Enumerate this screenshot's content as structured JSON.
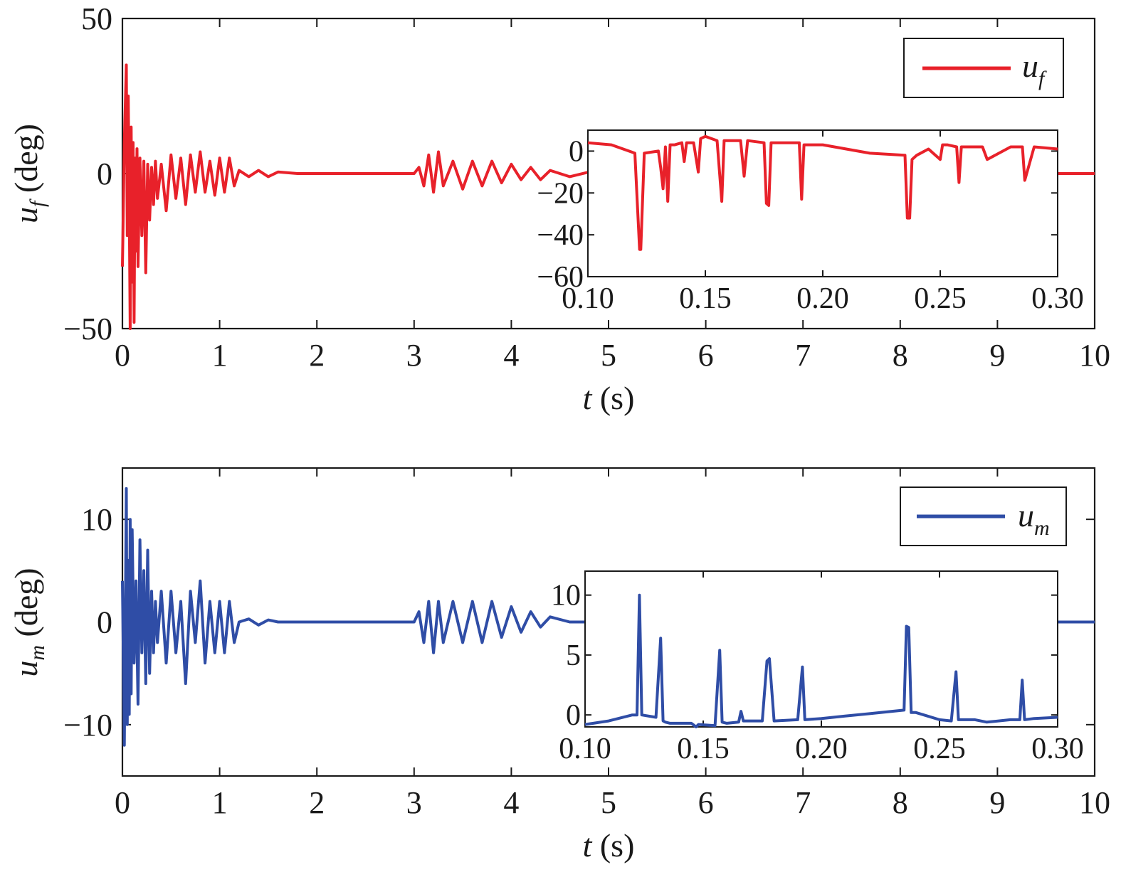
{
  "chart_data": [
    {
      "type": "line",
      "color": "#e8212a",
      "xlim": [
        0,
        10
      ],
      "ylim": [
        -50,
        50
      ],
      "xticks": [
        "0",
        "1",
        "2",
        "3",
        "4",
        "5",
        "6",
        "7",
        "8",
        "9",
        "10"
      ],
      "yticks": [
        "50",
        "0",
        "−50"
      ],
      "xlabel_var": "t",
      "xlabel_unit": " (s)",
      "ylabel_var": "u",
      "ylabel_sub": "f",
      "ylabel_unit": " (deg)",
      "legend_var": "u",
      "legend_sub": "f",
      "legend_position": "top-right",
      "series": [
        {
          "x": [
            0.0,
            0.02,
            0.04,
            0.05,
            0.06,
            0.07,
            0.08,
            0.09,
            0.1,
            0.11,
            0.12,
            0.13,
            0.14,
            0.15,
            0.16,
            0.18,
            0.2,
            0.22,
            0.24,
            0.26,
            0.28,
            0.3,
            0.32,
            0.34,
            0.36,
            0.4,
            0.45,
            0.5,
            0.55,
            0.6,
            0.65,
            0.7,
            0.75,
            0.8,
            0.85,
            0.9,
            0.95,
            1.0,
            1.05,
            1.1,
            1.15,
            1.2,
            1.3,
            1.4,
            1.5,
            1.6,
            1.8,
            2.0,
            2.5,
            3.0,
            3.05,
            3.1,
            3.15,
            3.2,
            3.25,
            3.3,
            3.4,
            3.5,
            3.6,
            3.7,
            3.8,
            3.9,
            4.0,
            4.1,
            4.2,
            4.3,
            4.4,
            4.6,
            4.8,
            5.0,
            9.6,
            10.0
          ],
          "y": [
            -30,
            10,
            35,
            -20,
            25,
            -10,
            -50,
            15,
            -35,
            10,
            -48,
            5,
            -25,
            8,
            -30,
            5,
            -20,
            4,
            -32,
            3,
            -15,
            2,
            -10,
            4,
            -8,
            3,
            -12,
            6,
            -8,
            5,
            -10,
            6,
            -6,
            7,
            -6,
            4,
            -7,
            5,
            -6,
            5,
            -4,
            1,
            -1,
            1,
            -1,
            0.5,
            0,
            0,
            0,
            0,
            2,
            -4,
            6,
            -6,
            7,
            -4,
            4,
            -5,
            4,
            -4,
            4,
            -3,
            3,
            -2,
            2,
            -2,
            1,
            -1,
            0.5,
            0,
            0,
            0
          ]
        }
      ],
      "inset": {
        "xlim": [
          0.1,
          0.3
        ],
        "ylim": [
          -60,
          10
        ],
        "xticks": [
          "0.10",
          "0.15",
          "0.20",
          "0.25",
          "0.30"
        ],
        "yticks": [
          "0",
          "−20",
          "−40",
          "−60"
        ],
        "x": [
          0.1,
          0.11,
          0.12,
          0.122,
          0.1225,
          0.124,
          0.13,
          0.131,
          0.132,
          0.133,
          0.134,
          0.135,
          0.137,
          0.14,
          0.141,
          0.142,
          0.145,
          0.147,
          0.148,
          0.15,
          0.155,
          0.157,
          0.158,
          0.16,
          0.165,
          0.1665,
          0.168,
          0.175,
          0.176,
          0.177,
          0.178,
          0.19,
          0.191,
          0.192,
          0.2,
          0.21,
          0.22,
          0.235,
          0.236,
          0.237,
          0.238,
          0.24,
          0.245,
          0.25,
          0.251,
          0.253,
          0.257,
          0.258,
          0.259,
          0.265,
          0.268,
          0.27,
          0.28,
          0.284,
          0.285,
          0.286,
          0.29,
          0.3
        ],
        "y": [
          4,
          3,
          -1,
          -47,
          -47,
          -1,
          0,
          -8,
          -18,
          2,
          -24,
          3,
          3,
          4,
          -5,
          4,
          4,
          -10,
          6,
          7,
          5,
          -24,
          5,
          5,
          5,
          -12,
          5,
          4,
          -25,
          -26,
          4,
          4,
          -23,
          3,
          3,
          1,
          -1,
          -2,
          -32,
          -32,
          -4,
          -2,
          1,
          -4,
          3,
          3,
          2,
          -15,
          2,
          2,
          2,
          -4,
          2,
          2,
          2,
          -14,
          2,
          1
        ]
      }
    },
    {
      "type": "line",
      "color": "#2f4da6",
      "xlim": [
        0,
        10
      ],
      "ylim": [
        -15,
        15
      ],
      "xticks": [
        "0",
        "1",
        "2",
        "3",
        "4",
        "5",
        "6",
        "7",
        "8",
        "9",
        "10"
      ],
      "yticks": [
        "10",
        "0",
        "−10"
      ],
      "xlabel_var": "t",
      "xlabel_unit": " (s)",
      "ylabel_var": "u",
      "ylabel_sub": "m",
      "ylabel_unit": " (deg)",
      "legend_var": "u",
      "legend_sub": "m",
      "legend_position": "top-right",
      "series": [
        {
          "x": [
            0.0,
            0.02,
            0.04,
            0.05,
            0.06,
            0.07,
            0.08,
            0.09,
            0.1,
            0.12,
            0.14,
            0.16,
            0.18,
            0.2,
            0.22,
            0.24,
            0.26,
            0.28,
            0.3,
            0.32,
            0.34,
            0.36,
            0.4,
            0.45,
            0.5,
            0.55,
            0.6,
            0.65,
            0.7,
            0.75,
            0.8,
            0.85,
            0.9,
            0.95,
            1.0,
            1.05,
            1.1,
            1.15,
            1.2,
            1.3,
            1.4,
            1.5,
            1.6,
            1.8,
            2.0,
            2.5,
            3.0,
            3.05,
            3.1,
            3.15,
            3.2,
            3.25,
            3.3,
            3.4,
            3.5,
            3.6,
            3.7,
            3.8,
            3.9,
            4.0,
            4.1,
            4.2,
            4.3,
            4.4,
            4.6,
            4.8,
            5.0,
            9.6,
            10.0
          ],
          "y": [
            4,
            -12,
            13,
            -10,
            6,
            -9,
            10,
            -7,
            9,
            -4,
            4,
            -8,
            8,
            -3,
            5,
            -6,
            7,
            -5,
            3,
            -3,
            2,
            -2,
            3,
            -4,
            3,
            -3,
            2,
            -6,
            3,
            -2,
            4,
            -4,
            2,
            -3,
            2,
            -3,
            2,
            -2,
            0,
            0.3,
            -0.3,
            0.2,
            0,
            0,
            0,
            0,
            0,
            1,
            -2,
            2,
            -3,
            2,
            -2,
            2,
            -2,
            2,
            -2,
            2,
            -1.5,
            1.5,
            -1,
            1,
            -0.5,
            0.5,
            0,
            0,
            0,
            0,
            0
          ]
        }
      ],
      "inset": {
        "xlim": [
          0.1,
          0.3
        ],
        "ylim": [
          -1,
          12
        ],
        "xticks": [
          "0.10",
          "0.15",
          "0.20",
          "0.25",
          "0.30"
        ],
        "yticks": [
          "10",
          "5",
          "0"
        ],
        "x": [
          0.1,
          0.11,
          0.12,
          0.122,
          0.123,
          0.124,
          0.13,
          0.132,
          0.133,
          0.134,
          0.136,
          0.145,
          0.147,
          0.148,
          0.155,
          0.157,
          0.158,
          0.16,
          0.165,
          0.166,
          0.167,
          0.175,
          0.177,
          0.178,
          0.18,
          0.19,
          0.192,
          0.193,
          0.2,
          0.21,
          0.22,
          0.235,
          0.236,
          0.237,
          0.238,
          0.24,
          0.245,
          0.25,
          0.255,
          0.257,
          0.258,
          0.259,
          0.265,
          0.27,
          0.28,
          0.284,
          0.285,
          0.286,
          0.29,
          0.3
        ],
        "y": [
          -0.8,
          -0.5,
          0,
          0,
          10,
          0,
          -0.2,
          6.4,
          -0.5,
          -0.6,
          -0.7,
          -0.7,
          -1,
          -0.8,
          -0.9,
          5.4,
          -0.6,
          -0.7,
          -0.6,
          0.3,
          -0.5,
          -0.5,
          4.5,
          4.7,
          -0.5,
          -0.4,
          4,
          -0.4,
          -0.3,
          -0.1,
          0.1,
          0.4,
          7.4,
          7.3,
          0.2,
          0.2,
          -0.1,
          -0.4,
          -0.5,
          3.6,
          -0.4,
          -0.4,
          -0.4,
          -0.6,
          -0.4,
          -0.4,
          2.9,
          -0.4,
          -0.3,
          -0.2
        ]
      }
    }
  ]
}
